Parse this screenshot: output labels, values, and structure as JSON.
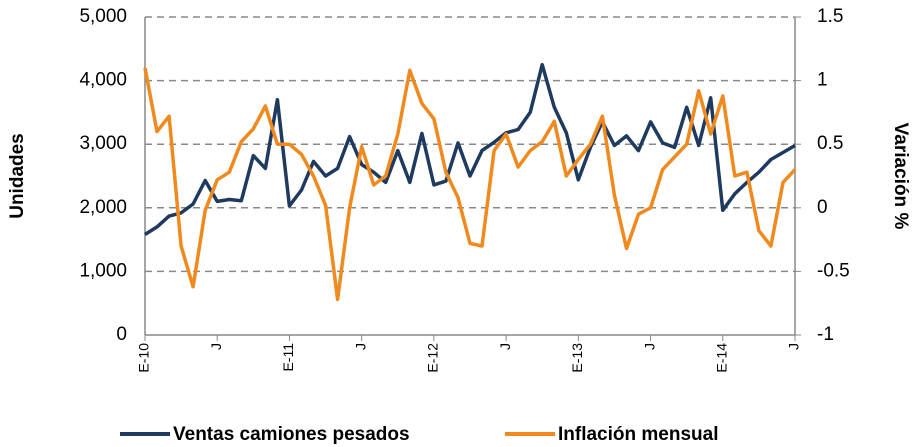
{
  "chart_data": {
    "type": "line",
    "y_label": "Unidades",
    "y2_label": "Variación %",
    "categories": [
      "E-10",
      null,
      null,
      null,
      null,
      null,
      "J",
      null,
      null,
      null,
      null,
      null,
      "E-11",
      null,
      null,
      null,
      null,
      null,
      "J",
      null,
      null,
      null,
      null,
      null,
      "E-12",
      null,
      null,
      null,
      null,
      null,
      "J",
      null,
      null,
      null,
      null,
      null,
      "E-13",
      null,
      null,
      null,
      null,
      null,
      "J",
      null,
      null,
      null,
      null,
      null,
      "E-14",
      null,
      null,
      null,
      null,
      null,
      "J"
    ],
    "series": [
      {
        "name": "Ventas camiones pesados",
        "color": "#1f3a5f",
        "values": [
          1580,
          1700,
          1870,
          1920,
          2060,
          2430,
          2100,
          2130,
          2110,
          2820,
          2620,
          3700,
          2030,
          2280,
          2730,
          2500,
          2620,
          3120,
          2680,
          2560,
          2400,
          2900,
          2400,
          3170,
          2360,
          2420,
          3020,
          2500,
          2900,
          3030,
          3180,
          3230,
          3500,
          4250,
          3580,
          3180,
          2440,
          2950,
          3350,
          2980,
          3130,
          2900,
          3350,
          3020,
          2950,
          3580,
          2980,
          3730,
          1960,
          2220,
          2400,
          2560,
          2760,
          2870,
          2980
        ]
      },
      {
        "name": "Inflación mensual",
        "color": "#f08a1e",
        "axis": "y2",
        "values": [
          1.1,
          0.6,
          0.72,
          -0.3,
          -0.62,
          -0.02,
          0.22,
          0.28,
          0.52,
          0.62,
          0.8,
          0.5,
          0.5,
          0.42,
          0.25,
          0.02,
          -0.72,
          0.0,
          0.48,
          0.18,
          0.25,
          0.58,
          1.08,
          0.82,
          0.7,
          0.28,
          0.08,
          -0.28,
          -0.3,
          0.45,
          0.58,
          0.32,
          0.45,
          0.52,
          0.68,
          0.25,
          0.38,
          0.5,
          0.72,
          0.1,
          -0.32,
          -0.05,
          0.0,
          0.3,
          0.4,
          0.5,
          0.92,
          0.58,
          0.88,
          0.25,
          0.28,
          -0.18,
          -0.3,
          0.2,
          0.3
        ]
      }
    ],
    "ylim": [
      0,
      5000
    ],
    "yticks": [
      0,
      {
        "value": 1000,
        "label": "1,000"
      },
      {
        "value": 2000,
        "label": "2,000"
      },
      {
        "value": 3000,
        "label": "3,000"
      },
      {
        "value": 4000,
        "label": "4,000"
      },
      {
        "value": 5000,
        "label": "5,000"
      }
    ],
    "y2lim": [
      -1,
      1.5
    ],
    "y2ticks": [
      -1,
      -0.5,
      0,
      0.5,
      1,
      1.5
    ],
    "grid": true,
    "legend": "bottom"
  }
}
